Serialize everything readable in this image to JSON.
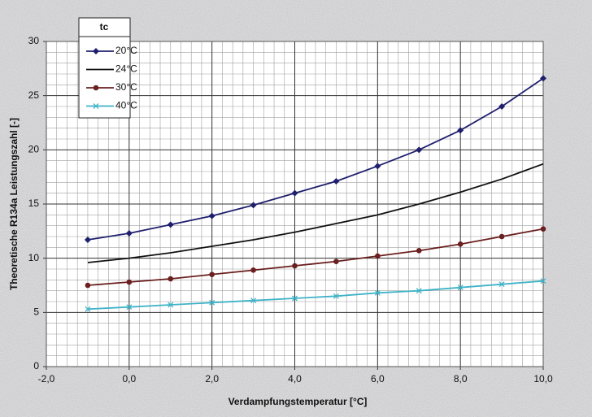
{
  "chart_data": {
    "type": "line",
    "y_label": "Theoretische R134a Leistungszahl [-]",
    "x_label": "Verdampfungstemperatur [°C]",
    "legend_title": "tc",
    "legend_position": "upper-left",
    "grid": true,
    "x": [
      -1,
      0,
      1,
      2,
      3,
      4,
      5,
      6,
      7,
      8,
      9,
      10
    ],
    "series": [
      {
        "name": "20°C",
        "color": "#1f1f6e",
        "marker": "diamond",
        "values": [
          11.7,
          12.3,
          13.1,
          13.9,
          14.9,
          16.0,
          17.1,
          18.5,
          20.0,
          21.8,
          24.0,
          26.6
        ]
      },
      {
        "name": "24°C",
        "color": "#111111",
        "marker": "none",
        "values": [
          9.6,
          10.0,
          10.5,
          11.1,
          11.7,
          12.4,
          13.2,
          14.0,
          15.0,
          16.1,
          17.3,
          18.7
        ]
      },
      {
        "name": "30°C",
        "color": "#6b1f1f",
        "marker": "circle",
        "values": [
          7.5,
          7.8,
          8.1,
          8.5,
          8.9,
          9.3,
          9.7,
          10.2,
          10.7,
          11.3,
          12.0,
          12.7
        ]
      },
      {
        "name": "40°C",
        "color": "#3fb3c8",
        "marker": "x",
        "values": [
          5.3,
          5.5,
          5.7,
          5.9,
          6.1,
          6.3,
          6.5,
          6.8,
          7.0,
          7.3,
          7.6,
          7.9
        ]
      }
    ],
    "xlim": [
      -2,
      10
    ],
    "ylim": [
      0,
      30
    ],
    "xticks": [
      {
        "value": -2,
        "label": "-2,0"
      },
      {
        "value": 0,
        "label": "0,0"
      },
      {
        "value": 2,
        "label": "2,0"
      },
      {
        "value": 4,
        "label": "4,0"
      },
      {
        "value": 6,
        "label": "6,0"
      },
      {
        "value": 8,
        "label": "8,0"
      },
      {
        "value": 10,
        "label": "10,0"
      }
    ],
    "yticks": [
      0,
      5,
      10,
      15,
      20,
      25,
      30
    ]
  }
}
